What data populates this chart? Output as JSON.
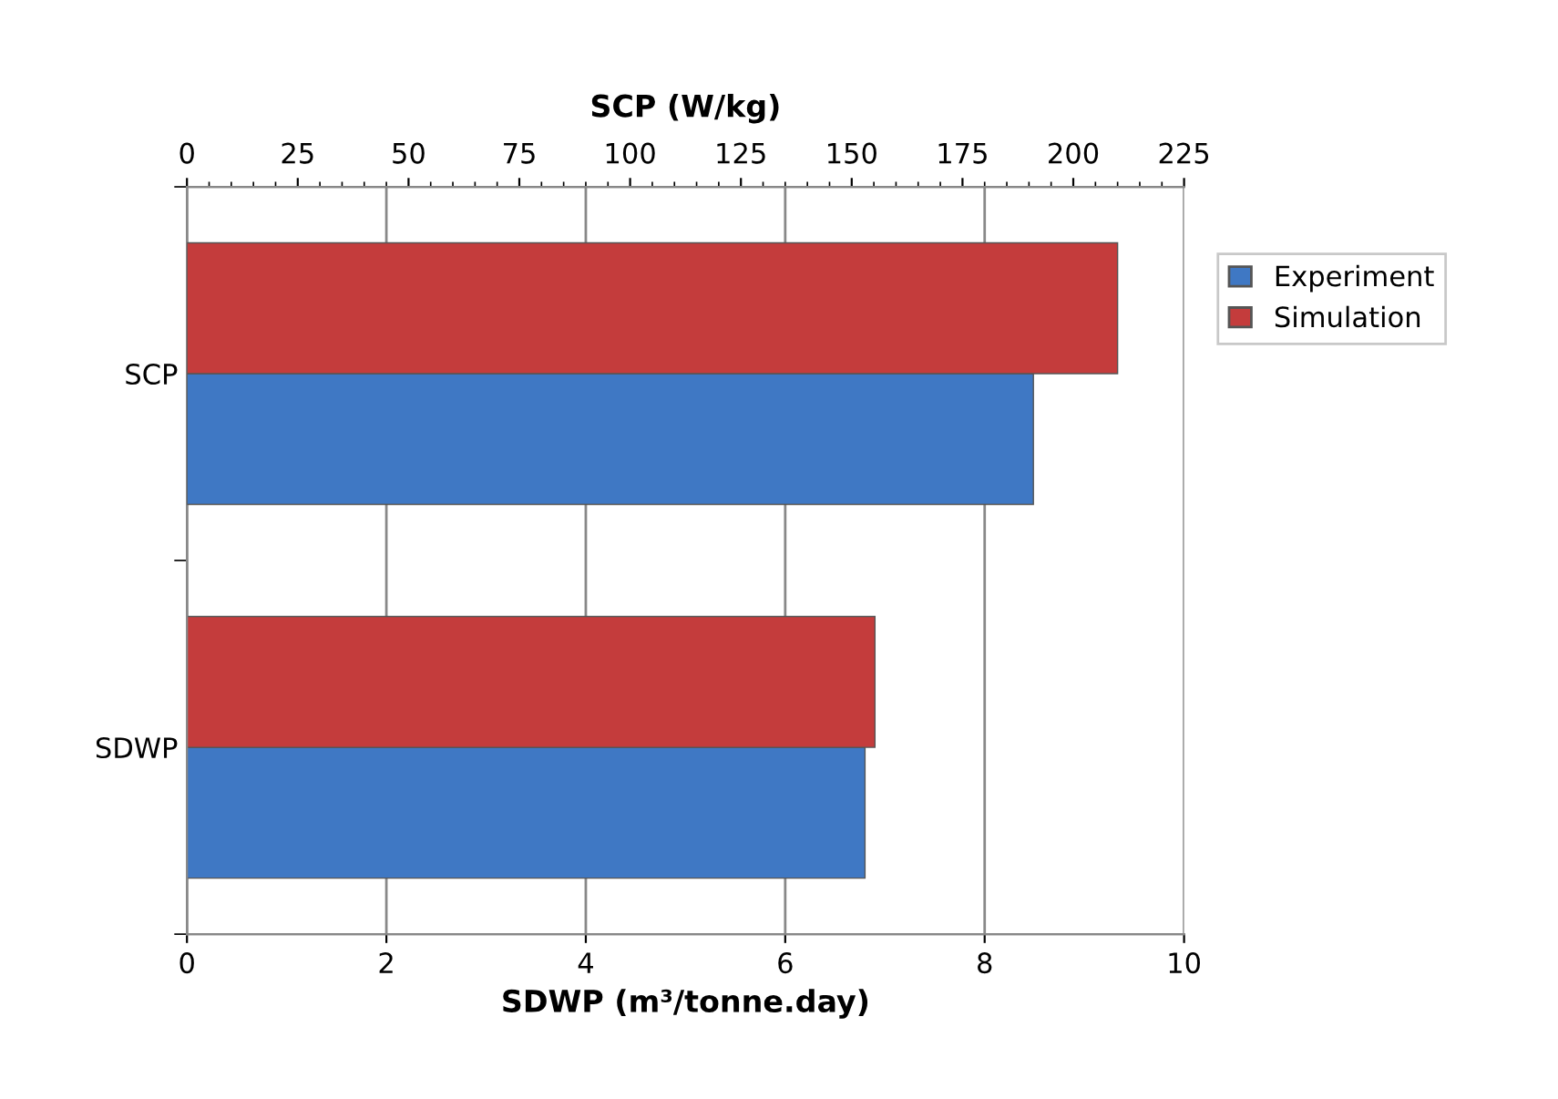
{
  "chart_data": {
    "type": "bar",
    "orientation": "horizontal",
    "categories": [
      "SCP",
      "SDWP"
    ],
    "series": [
      {
        "name": "Experiment",
        "color": "#3f78c4",
        "values": [
          null,
          6.8
        ]
      },
      {
        "name": "Simulation",
        "color": "#c43c3c",
        "values": [
          null,
          6.9
        ]
      },
      {
        "color": "#3f78c4",
        "values": [
          191,
          null
        ],
        "axis": "x2"
      },
      {
        "color": "#c43c3c",
        "values": [
          210,
          null
        ],
        "axis": "x2"
      }
    ],
    "xlabel": "SDWP (m³/tonne.day)",
    "x2label": "SCP (W/kg)",
    "xlim": [
      0,
      10
    ],
    "xticks": [
      0,
      2,
      4,
      6,
      8,
      10
    ],
    "x2lim": [
      0,
      225
    ],
    "x2ticks": [
      0,
      25,
      50,
      75,
      100,
      125,
      150,
      175,
      200,
      225
    ],
    "grid": "x",
    "legend": "right"
  }
}
